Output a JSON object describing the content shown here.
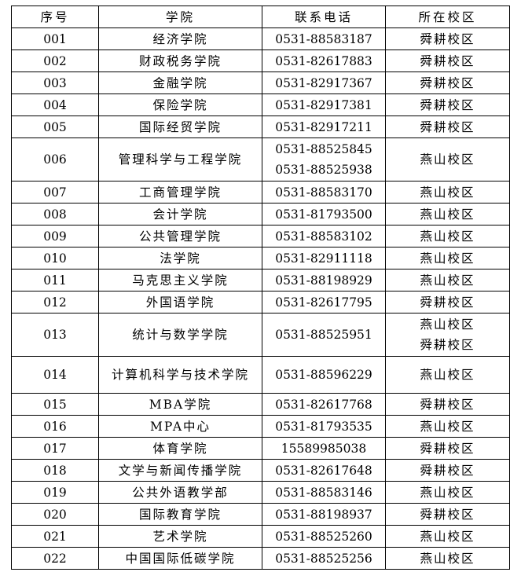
{
  "headers": [
    "序号",
    "学院",
    "联系电话",
    "所在校区"
  ],
  "rows": [
    {
      "no": "001",
      "college": "经济学院",
      "phones": [
        "0531-88583187"
      ],
      "campus": [
        "舜耕校区"
      ]
    },
    {
      "no": "002",
      "college": "财政税务学院",
      "phones": [
        "0531-82617883"
      ],
      "campus": [
        "舜耕校区"
      ]
    },
    {
      "no": "003",
      "college": "金融学院",
      "phones": [
        "0531-82917367"
      ],
      "campus": [
        "舜耕校区"
      ]
    },
    {
      "no": "004",
      "college": "保险学院",
      "phones": [
        "0531-82917381"
      ],
      "campus": [
        "舜耕校区"
      ]
    },
    {
      "no": "005",
      "college": "国际经贸学院",
      "phones": [
        "0531-82917211"
      ],
      "campus": [
        "舜耕校区"
      ]
    },
    {
      "no": "006",
      "college": "管理科学与工程学院",
      "phones": [
        "0531-88525845",
        "0531-88525938"
      ],
      "campus": [
        "燕山校区"
      ]
    },
    {
      "no": "007",
      "college": "工商管理学院",
      "phones": [
        "0531-88583170"
      ],
      "campus": [
        "燕山校区"
      ]
    },
    {
      "no": "008",
      "college": "会计学院",
      "phones": [
        "0531-81793500"
      ],
      "campus": [
        "燕山校区"
      ]
    },
    {
      "no": "009",
      "college": "公共管理学院",
      "phones": [
        "0531-88583102"
      ],
      "campus": [
        "燕山校区"
      ]
    },
    {
      "no": "010",
      "college": "法学院",
      "phones": [
        "0531-82911118"
      ],
      "campus": [
        "燕山校区"
      ]
    },
    {
      "no": "011",
      "college": "马克思主义学院",
      "phones": [
        "0531-88198929"
      ],
      "campus": [
        "燕山校区"
      ]
    },
    {
      "no": "012",
      "college": "外国语学院",
      "phones": [
        "0531-82617795"
      ],
      "campus": [
        "舜耕校区"
      ]
    },
    {
      "no": "013",
      "college": "统计与数学学院",
      "phones": [
        "0531-88525951"
      ],
      "campus": [
        "燕山校区",
        "舜耕校区"
      ]
    },
    {
      "no": "014",
      "college": "计算机科学与技术学院",
      "phones": [
        "0531-88596229"
      ],
      "campus": [
        "燕山校区"
      ]
    },
    {
      "no": "015",
      "college": "MBA学院",
      "phones": [
        "0531-82617768"
      ],
      "campus": [
        "舜耕校区"
      ]
    },
    {
      "no": "016",
      "college": "MPA中心",
      "phones": [
        "0531-81793535"
      ],
      "campus": [
        "燕山校区"
      ]
    },
    {
      "no": "017",
      "college": "体育学院",
      "phones": [
        "15589985038"
      ],
      "campus": [
        "舜耕校区"
      ]
    },
    {
      "no": "018",
      "college": "文学与新闻传播学院",
      "phones": [
        "0531-82617648"
      ],
      "campus": [
        "舜耕校区"
      ]
    },
    {
      "no": "019",
      "college": "公共外语教学部",
      "phones": [
        "0531-88583146"
      ],
      "campus": [
        "燕山校区"
      ]
    },
    {
      "no": "020",
      "college": "国际教育学院",
      "phones": [
        "0531-88198937"
      ],
      "campus": [
        "舜耕校区"
      ]
    },
    {
      "no": "021",
      "college": "艺术学院",
      "phones": [
        "0531-88525260"
      ],
      "campus": [
        "燕山校区"
      ]
    },
    {
      "no": "022",
      "college": "中国国际低碳学院",
      "phones": [
        "0531-88525256"
      ],
      "campus": [
        "燕山校区"
      ]
    }
  ]
}
